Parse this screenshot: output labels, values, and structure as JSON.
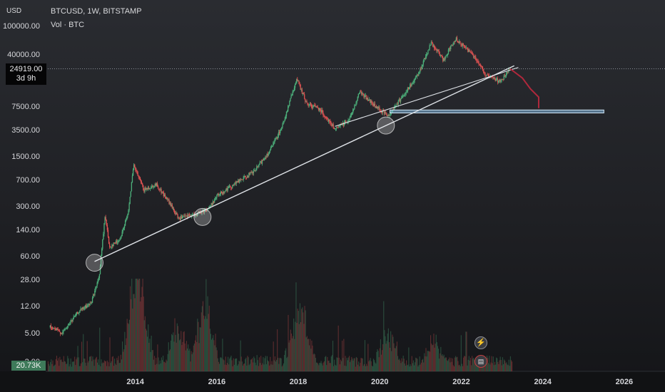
{
  "header": {
    "symbol_line": "BTCUSD, 1W, BITSTAMP",
    "volume_label": "Vol · BTC",
    "currency": "USD"
  },
  "price_tag": {
    "price": "24919.00",
    "countdown": "3d 9h"
  },
  "volume_tag": "20.73K",
  "icons": {
    "events": "lightning-icon",
    "economic": "flag-icon"
  },
  "colors": {
    "up": "#4caf7a",
    "down": "#e05252",
    "trendline": "#dfe3e8",
    "zone_fill": "#7fb7e0",
    "projection": "#b0283c"
  },
  "chart_data": {
    "type": "candlestick",
    "symbol": "BTCUSD",
    "interval": "1W",
    "exchange": "BITSTAMP",
    "y_scale": "log",
    "y_ticks": [
      "100000.00",
      "40000.00",
      "7500.00",
      "3500.00",
      "1500.00",
      "700.00",
      "300.00",
      "140.00",
      "60.00",
      "28.00",
      "12.00",
      "5.00",
      "2.00"
    ],
    "x_ticks": [
      "2014",
      "2016",
      "2018",
      "2020",
      "2022",
      "2024",
      "2026"
    ],
    "xlim": [
      2011.8,
      2027.0
    ],
    "price_path": [
      [
        2011.9,
        6
      ],
      [
        2012.2,
        5
      ],
      [
        2012.6,
        10
      ],
      [
        2012.9,
        13
      ],
      [
        2013.1,
        30
      ],
      [
        2013.25,
        230
      ],
      [
        2013.35,
        80
      ],
      [
        2013.6,
        100
      ],
      [
        2013.8,
        220
      ],
      [
        2013.95,
        1100
      ],
      [
        2014.2,
        500
      ],
      [
        2014.5,
        600
      ],
      [
        2014.8,
        350
      ],
      [
        2015.05,
        200
      ],
      [
        2015.5,
        230
      ],
      [
        2015.8,
        280
      ],
      [
        2016.0,
        420
      ],
      [
        2016.5,
        650
      ],
      [
        2016.9,
        900
      ],
      [
        2017.3,
        1800
      ],
      [
        2017.6,
        4000
      ],
      [
        2017.95,
        18000
      ],
      [
        2018.2,
        8000
      ],
      [
        2018.5,
        7000
      ],
      [
        2018.9,
        3500
      ],
      [
        2019.25,
        5000
      ],
      [
        2019.5,
        12000
      ],
      [
        2019.9,
        7200
      ],
      [
        2020.2,
        5500
      ],
      [
        2020.5,
        9500
      ],
      [
        2020.9,
        19000
      ],
      [
        2021.25,
        58000
      ],
      [
        2021.55,
        33000
      ],
      [
        2021.85,
        66000
      ],
      [
        2022.3,
        38000
      ],
      [
        2022.6,
        20000
      ],
      [
        2022.95,
        16500
      ],
      [
        2023.2,
        24919
      ]
    ],
    "volume_spikes": [
      {
        "x": 2013.95,
        "v": 0.9
      },
      {
        "x": 2014.1,
        "v": 0.75
      },
      {
        "x": 2015.05,
        "v": 0.55
      },
      {
        "x": 2015.7,
        "v": 1.0
      },
      {
        "x": 2017.95,
        "v": 0.45
      },
      {
        "x": 2018.1,
        "v": 0.5
      },
      {
        "x": 2020.2,
        "v": 0.42
      },
      {
        "x": 2021.3,
        "v": 0.3
      }
    ],
    "drawings": {
      "trendline_long": [
        [
          2013.0,
          50
        ],
        [
          2023.3,
          27500
        ]
      ],
      "trendline_short": [
        [
          2018.9,
          3900
        ],
        [
          2023.4,
          26000
        ]
      ],
      "highlight_circles": [
        [
          2013.0,
          48
        ],
        [
          2015.65,
          210
        ],
        [
          2020.15,
          4000
        ]
      ],
      "support_zone": {
        "x_from": 2020.25,
        "x_to": 2025.5,
        "y_low": 6000,
        "y_high": 6600
      },
      "projection_path": [
        [
          2023.2,
          24919
        ],
        [
          2023.5,
          18500
        ],
        [
          2023.7,
          13000
        ],
        [
          2023.9,
          10000
        ],
        [
          2023.9,
          7000
        ]
      ]
    }
  }
}
